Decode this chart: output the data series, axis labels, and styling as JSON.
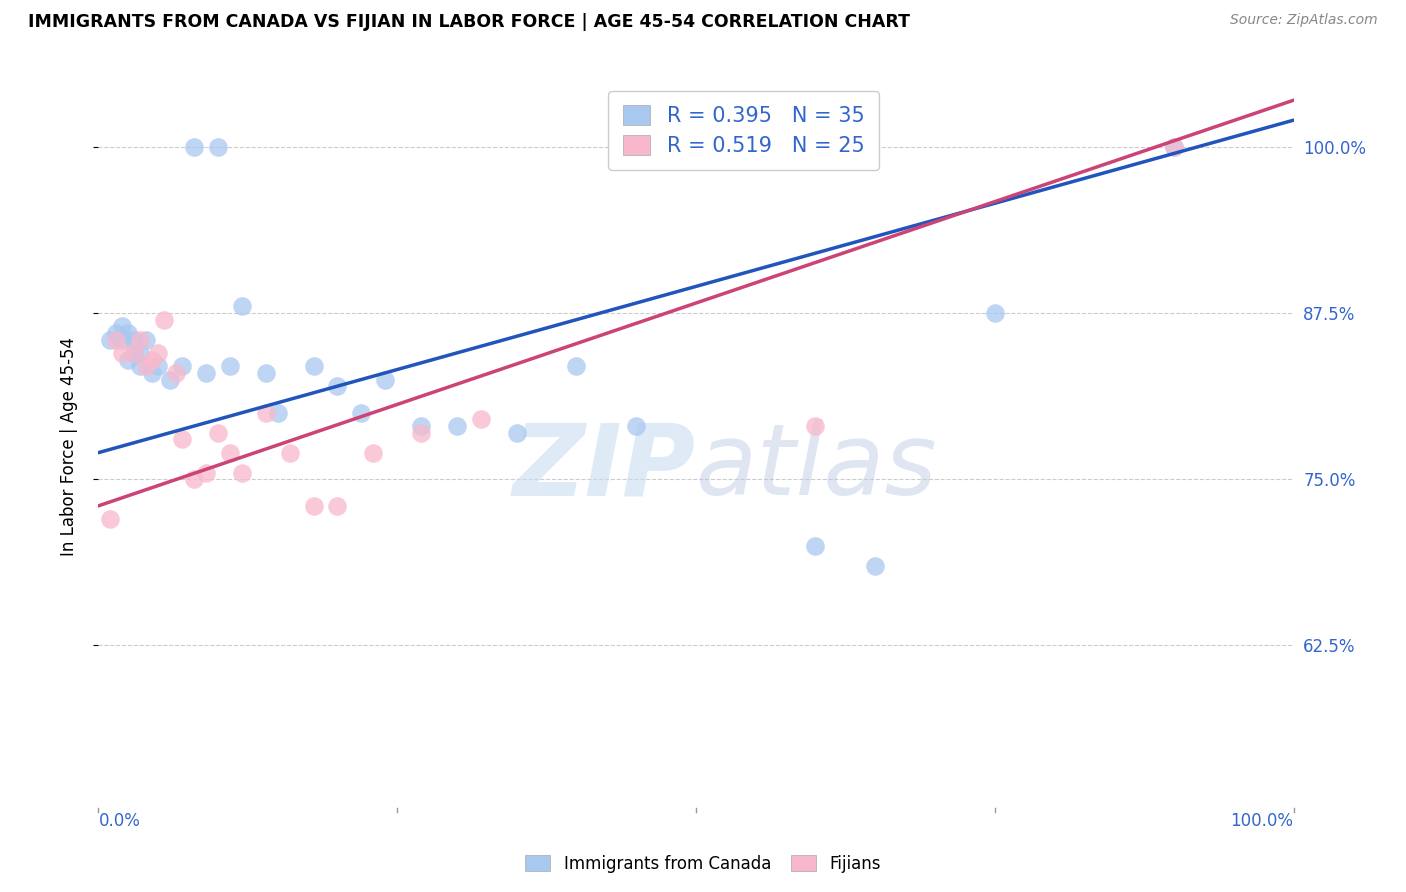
{
  "title": "IMMIGRANTS FROM CANADA VS FIJIAN IN LABOR FORCE | AGE 45-54 CORRELATION CHART",
  "source": "Source: ZipAtlas.com",
  "ylabel": "In Labor Force | Age 45-54",
  "ytick_labels": [
    "100.0%",
    "87.5%",
    "75.0%",
    "62.5%"
  ],
  "ytick_vals": [
    1.0,
    0.875,
    0.75,
    0.625
  ],
  "xlim": [
    0.0,
    1.0
  ],
  "ylim": [
    0.5,
    1.05
  ],
  "canada_R": 0.395,
  "canada_N": 35,
  "fijian_R": 0.519,
  "fijian_N": 25,
  "canada_color": "#a8c8f0",
  "fijian_color": "#f8b8cc",
  "canada_line_color": "#2255bb",
  "fijian_line_color": "#cc4477",
  "canada_scatter_x": [
    0.01,
    0.015,
    0.02,
    0.02,
    0.025,
    0.025,
    0.03,
    0.03,
    0.035,
    0.035,
    0.04,
    0.045,
    0.05,
    0.06,
    0.07,
    0.08,
    0.09,
    0.1,
    0.11,
    0.12,
    0.14,
    0.15,
    0.18,
    0.2,
    0.22,
    0.24,
    0.27,
    0.3,
    0.35,
    0.4,
    0.45,
    0.6,
    0.65,
    0.75,
    0.9
  ],
  "canada_scatter_y": [
    0.855,
    0.86,
    0.855,
    0.865,
    0.84,
    0.86,
    0.845,
    0.855,
    0.835,
    0.845,
    0.855,
    0.83,
    0.835,
    0.825,
    0.835,
    1.0,
    0.83,
    1.0,
    0.835,
    0.88,
    0.83,
    0.8,
    0.835,
    0.82,
    0.8,
    0.825,
    0.79,
    0.79,
    0.785,
    0.835,
    0.79,
    0.7,
    0.685,
    0.875,
    1.0
  ],
  "fijian_scatter_x": [
    0.01,
    0.015,
    0.02,
    0.03,
    0.035,
    0.04,
    0.045,
    0.05,
    0.055,
    0.065,
    0.07,
    0.08,
    0.09,
    0.1,
    0.11,
    0.12,
    0.14,
    0.16,
    0.18,
    0.2,
    0.23,
    0.27,
    0.32,
    0.6,
    0.9
  ],
  "fijian_scatter_y": [
    0.72,
    0.855,
    0.845,
    0.845,
    0.855,
    0.835,
    0.84,
    0.845,
    0.87,
    0.83,
    0.78,
    0.75,
    0.755,
    0.785,
    0.77,
    0.755,
    0.8,
    0.77,
    0.73,
    0.73,
    0.77,
    0.785,
    0.795,
    0.79,
    1.0
  ],
  "canada_trend_x": [
    0.0,
    1.0
  ],
  "canada_trend_y": [
    0.77,
    1.02
  ],
  "fijian_trend_x": [
    0.0,
    1.0
  ],
  "fijian_trend_y": [
    0.73,
    1.035
  ],
  "background_color": "#ffffff",
  "grid_color": "#cccccc",
  "watermark1": "ZIP",
  "watermark2": "atlas"
}
